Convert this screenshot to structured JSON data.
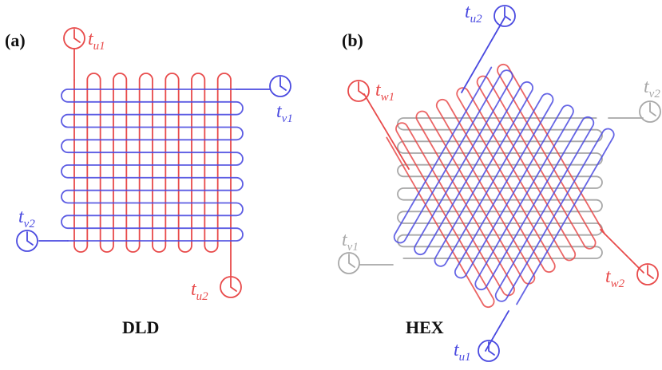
{
  "panels": [
    {
      "label": "(a)",
      "title": "DLD",
      "clocks": [
        {
          "base": "t",
          "sub": "u1",
          "role": "u-line"
        },
        {
          "base": "t",
          "sub": "v1",
          "role": "v-line"
        },
        {
          "base": "t",
          "sub": "v2",
          "role": "v-line"
        },
        {
          "base": "t",
          "sub": "u2",
          "role": "u-line"
        }
      ]
    },
    {
      "label": "(b)",
      "title": "HEX",
      "clocks": [
        {
          "base": "t",
          "sub": "u2",
          "role": "u-line"
        },
        {
          "base": "t",
          "sub": "w1",
          "role": "w-line"
        },
        {
          "base": "t",
          "sub": "v2",
          "role": "v-line"
        },
        {
          "base": "t",
          "sub": "v1",
          "role": "v-line"
        },
        {
          "base": "t",
          "sub": "w2",
          "role": "w-line"
        },
        {
          "base": "t",
          "sub": "u1",
          "role": "u-line"
        }
      ]
    }
  ],
  "colors": {
    "u_line": "#e84a4a",
    "u_line_hex": "#4a4ae0",
    "v_line": "#4a4ae0",
    "v_line_hex": "#a8a8a8",
    "w_line": "#e84a4a",
    "text": "#111111"
  },
  "icons": [
    "clock-icon"
  ]
}
